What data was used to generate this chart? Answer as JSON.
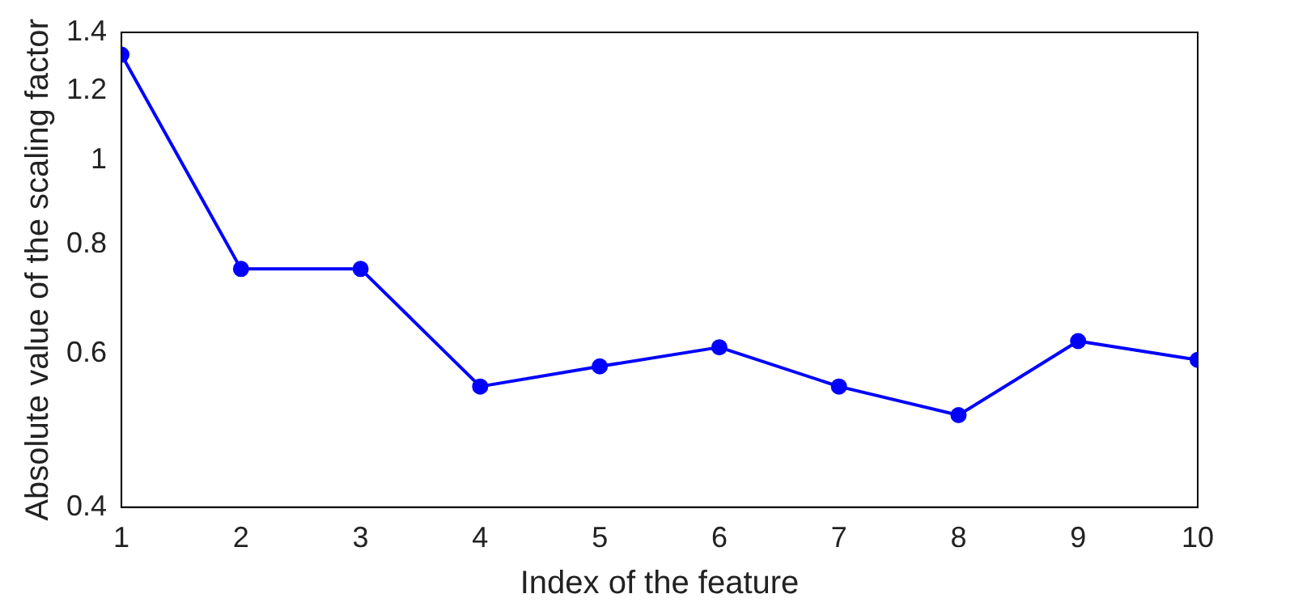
{
  "chart_data": {
    "type": "line",
    "xlabel": "Index of the feature",
    "ylabel": "Absolute value of the scaling factor",
    "x": [
      1,
      2,
      3,
      4,
      5,
      6,
      7,
      8,
      9,
      10
    ],
    "series": [
      {
        "color": "#0000ff",
        "values": [
          1.32,
          0.75,
          0.75,
          0.55,
          0.58,
          0.61,
          0.55,
          0.51,
          0.62,
          0.59
        ]
      }
    ],
    "log": true,
    "xlim": [
      1,
      10
    ],
    "xticks": [
      1,
      2,
      3,
      4,
      5,
      6,
      7,
      8,
      9,
      10
    ],
    "ylim": [
      0.4,
      1.4
    ],
    "yticks": [
      0.4,
      0.6,
      0.8,
      1,
      1.2,
      1.4
    ],
    "grid": false,
    "legend": false,
    "marker": "circle",
    "line_style": "solid"
  }
}
